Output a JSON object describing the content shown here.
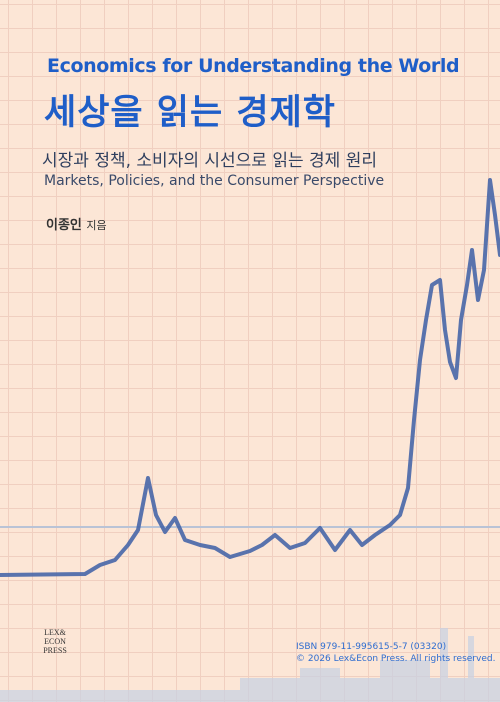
{
  "cover": {
    "series_title": "Economics for Understanding the World",
    "title": "세상을 읽는 경제학",
    "subtitle_ko": "시장과 정책, 소비자의 시선으로 읽는 경제 원리",
    "subtitle_en": "Markets, Policies, and the Consumer Perspective",
    "author": "이종인",
    "author_role": "지음",
    "publisher_logo": [
      "LEX&",
      "ECON",
      "PRESS"
    ],
    "isbn": "ISBN 979-11-995615-5-7 (03320)",
    "copyright": "© 2026 Lex&Econ Press. All rights reserved."
  }
}
